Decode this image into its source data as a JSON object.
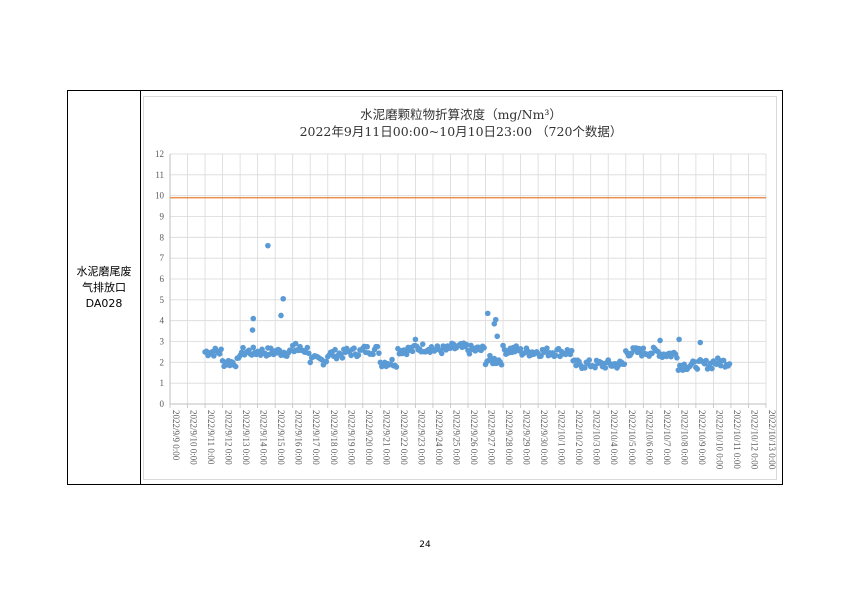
{
  "row_label": [
    "水泥磨尾废",
    "气排放口",
    "DA028"
  ],
  "page_number": "24",
  "chart_data": {
    "type": "scatter",
    "title": "水泥磨颗粒物折算浓度（mg/Nm³）",
    "subtitle": "2022年9月11日00:00~10月10日23:00 （720个数据）",
    "xlabel": "",
    "ylabel": "",
    "ylim": [
      0,
      12
    ],
    "yticks": [
      0,
      1,
      2,
      3,
      4,
      5,
      6,
      7,
      8,
      9,
      10,
      11,
      12
    ],
    "xticks": [
      "2022/9/9 0:00",
      "2022/9/10 0:00",
      "2022/9/11 0:00",
      "2022/9/12 0:00",
      "2022/9/13 0:00",
      "2022/9/14 0:00",
      "2022/9/15 0:00",
      "2022/9/16 0:00",
      "2022/9/17 0:00",
      "2022/9/18 0:00",
      "2022/9/19 0:00",
      "2022/9/20 0:00",
      "2022/9/21 0:00",
      "2022/9/22 0:00",
      "2022/9/23 0:00",
      "2022/9/24 0:00",
      "2022/9/25 0:00",
      "2022/9/26 0:00",
      "2022/9/27 0:00",
      "2022/9/28 0:00",
      "2022/9/29 0:00",
      "2022/9/30 0:00",
      "2022/10/1 0:00",
      "2022/10/2 0:00",
      "2022/10/3 0:00",
      "2022/10/4 0:00",
      "2022/10/5 0:00",
      "2022/10/6 0:00",
      "2022/10/7 0:00",
      "2022/10/8 0:00",
      "2022/10/9 0:00",
      "2022/10/10 0:00",
      "2022/10/11 0:00",
      "2022/10/12 0:00",
      "2022/10/13 0:00"
    ],
    "grid": true,
    "legend": "none",
    "limit_line": {
      "value": 9.9,
      "color": "#ed7d31"
    },
    "series_color": "#5b9bd5",
    "daily_mean": [
      2.5,
      2.0,
      2.5,
      2.5,
      2.5,
      2.6,
      2.1,
      2.4,
      2.5,
      2.6,
      2.0,
      2.6,
      2.7,
      2.6,
      2.7,
      2.6,
      2.1,
      2.6,
      2.5,
      2.5,
      2.5,
      1.9,
      1.9,
      1.9,
      2.5,
      2.5,
      2.4,
      1.85,
      1.9,
      2.0
    ],
    "outliers": [
      {
        "x": "2022/9/13 18:00",
        "y": 4.1
      },
      {
        "x": "2022/9/13 17:00",
        "y": 3.55
      },
      {
        "x": "2022/9/14 14:00",
        "y": 7.6
      },
      {
        "x": "2022/9/15 8:00",
        "y": 4.25
      },
      {
        "x": "2022/9/15 11:00",
        "y": 5.05
      },
      {
        "x": "2022/9/16 4:00",
        "y": 2.9
      },
      {
        "x": "2022/9/23 0:00",
        "y": 3.1
      },
      {
        "x": "2022/9/27 3:00",
        "y": 4.35
      },
      {
        "x": "2022/9/27 14:00",
        "y": 4.05
      },
      {
        "x": "2022/9/27 12:00",
        "y": 3.85
      },
      {
        "x": "2022/9/27 16:00",
        "y": 3.25
      },
      {
        "x": "2022/10/6 23:00",
        "y": 3.05
      },
      {
        "x": "2022/10/8 1:00",
        "y": 3.1
      },
      {
        "x": "2022/10/9 6:00",
        "y": 2.95
      }
    ]
  }
}
